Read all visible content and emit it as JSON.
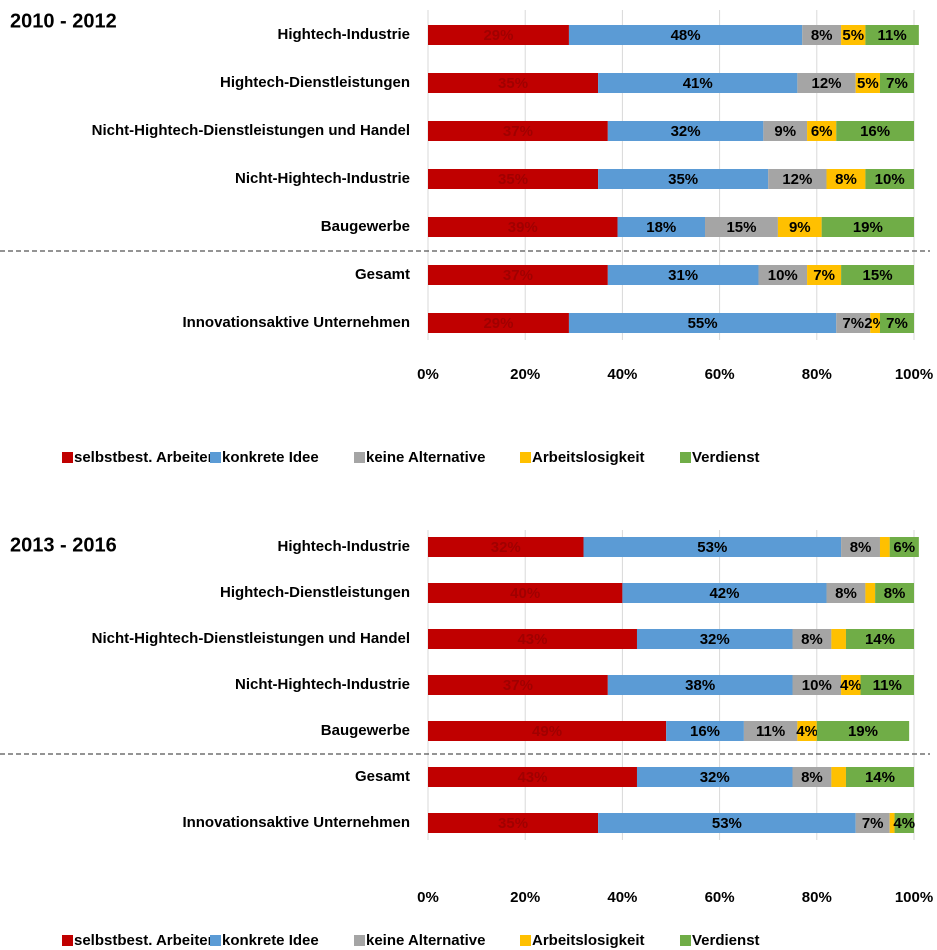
{
  "chart_data": [
    {
      "type": "stacked-bar-horizontal",
      "title": "2010 - 2012",
      "categories": [
        "Hightech-Industrie",
        "Hightech-Dienstleistungen",
        "Nicht-Hightech-Dienstleistungen und Handel",
        "Nicht-Hightech-Industrie",
        "Baugewerbe",
        "Gesamt",
        "Innovationsaktive Unternehmen"
      ],
      "series": [
        {
          "name": "selbstbest. Arbeiten",
          "color": "#c00000",
          "values": [
            29,
            35,
            37,
            35,
            39,
            37,
            29
          ],
          "value_labels": [
            "29%",
            "35%",
            "37%",
            "35%",
            "39%",
            "37%",
            "29%"
          ]
        },
        {
          "name": "konkrete Idee",
          "color": "#5b9bd5",
          "values": [
            48,
            41,
            32,
            35,
            18,
            31,
            55
          ],
          "value_labels": [
            "48%",
            "41%",
            "32%",
            "35%",
            "18%",
            "31%",
            "55%"
          ]
        },
        {
          "name": "keine Alternative",
          "color": "#a5a5a5",
          "values": [
            8,
            12,
            9,
            12,
            15,
            10,
            7
          ],
          "value_labels": [
            "8%",
            "12%",
            "9%",
            "12%",
            "15%",
            "10%",
            "7%"
          ]
        },
        {
          "name": "Arbeitslosigkeit",
          "color": "#ffc000",
          "values": [
            5,
            5,
            6,
            8,
            9,
            7,
            2
          ],
          "value_labels": [
            "5%",
            "5%",
            "6%",
            "8%",
            "9%",
            "7%",
            "2%"
          ]
        },
        {
          "name": "Verdienst",
          "color": "#70ad47",
          "values": [
            11,
            7,
            16,
            10,
            19,
            15,
            7
          ],
          "value_labels": [
            "11%",
            "7%",
            "16%",
            "10%",
            "19%",
            "15%",
            "7%"
          ]
        }
      ],
      "xlim": [
        0,
        100
      ],
      "xticks": [
        {
          "value": 0,
          "label": "0%"
        },
        {
          "value": 20,
          "label": "20%"
        },
        {
          "value": 40,
          "label": "40%"
        },
        {
          "value": 60,
          "label": "60%"
        },
        {
          "value": 80,
          "label": "80%"
        },
        {
          "value": 100,
          "label": "100%"
        }
      ],
      "grid": true,
      "legend": "bottom"
    },
    {
      "type": "stacked-bar-horizontal",
      "title": "2013 - 2016",
      "categories": [
        "Hightech-Industrie",
        "Hightech-Dienstleistungen",
        "Nicht-Hightech-Dienstleistungen und Handel",
        "Nicht-Hightech-Industrie",
        "Baugewerbe",
        "Gesamt",
        "Innovationsaktive Unternehmen"
      ],
      "series": [
        {
          "name": "selbstbest. Arbeiten",
          "color": "#c00000",
          "values": [
            32,
            40,
            43,
            37,
            49,
            43,
            35
          ],
          "value_labels": [
            "32%",
            "40%",
            "43%",
            "37%",
            "49%",
            "43%",
            "35%"
          ]
        },
        {
          "name": "konkrete Idee",
          "color": "#5b9bd5",
          "values": [
            53,
            42,
            32,
            38,
            16,
            32,
            53
          ],
          "value_labels": [
            "53%",
            "42%",
            "32%",
            "38%",
            "16%",
            "32%",
            "53%"
          ]
        },
        {
          "name": "keine Alternative",
          "color": "#a5a5a5",
          "values": [
            8,
            8,
            8,
            10,
            11,
            8,
            7
          ],
          "value_labels": [
            "8%",
            "8%",
            "8%",
            "10%",
            "11%",
            "8%",
            "7%"
          ]
        },
        {
          "name": "Arbeitslosigkeit",
          "color": "#ffc000",
          "values": [
            2,
            2,
            3,
            4,
            4,
            3,
            1
          ],
          "value_labels": [
            null,
            null,
            null,
            "4%",
            "4%",
            null,
            null
          ]
        },
        {
          "name": "Verdienst",
          "color": "#70ad47",
          "values": [
            6,
            8,
            14,
            11,
            19,
            14,
            4
          ],
          "value_labels": [
            "6%",
            "8%",
            "14%",
            "11%",
            "19%",
            "14%",
            "4%"
          ]
        }
      ],
      "xlim": [
        0,
        100
      ],
      "xticks": [
        {
          "value": 0,
          "label": "0%"
        },
        {
          "value": 20,
          "label": "20%"
        },
        {
          "value": 40,
          "label": "40%"
        },
        {
          "value": 60,
          "label": "60%"
        },
        {
          "value": 80,
          "label": "80%"
        },
        {
          "value": 100,
          "label": "100%"
        }
      ],
      "grid": true,
      "legend": "bottom"
    }
  ]
}
